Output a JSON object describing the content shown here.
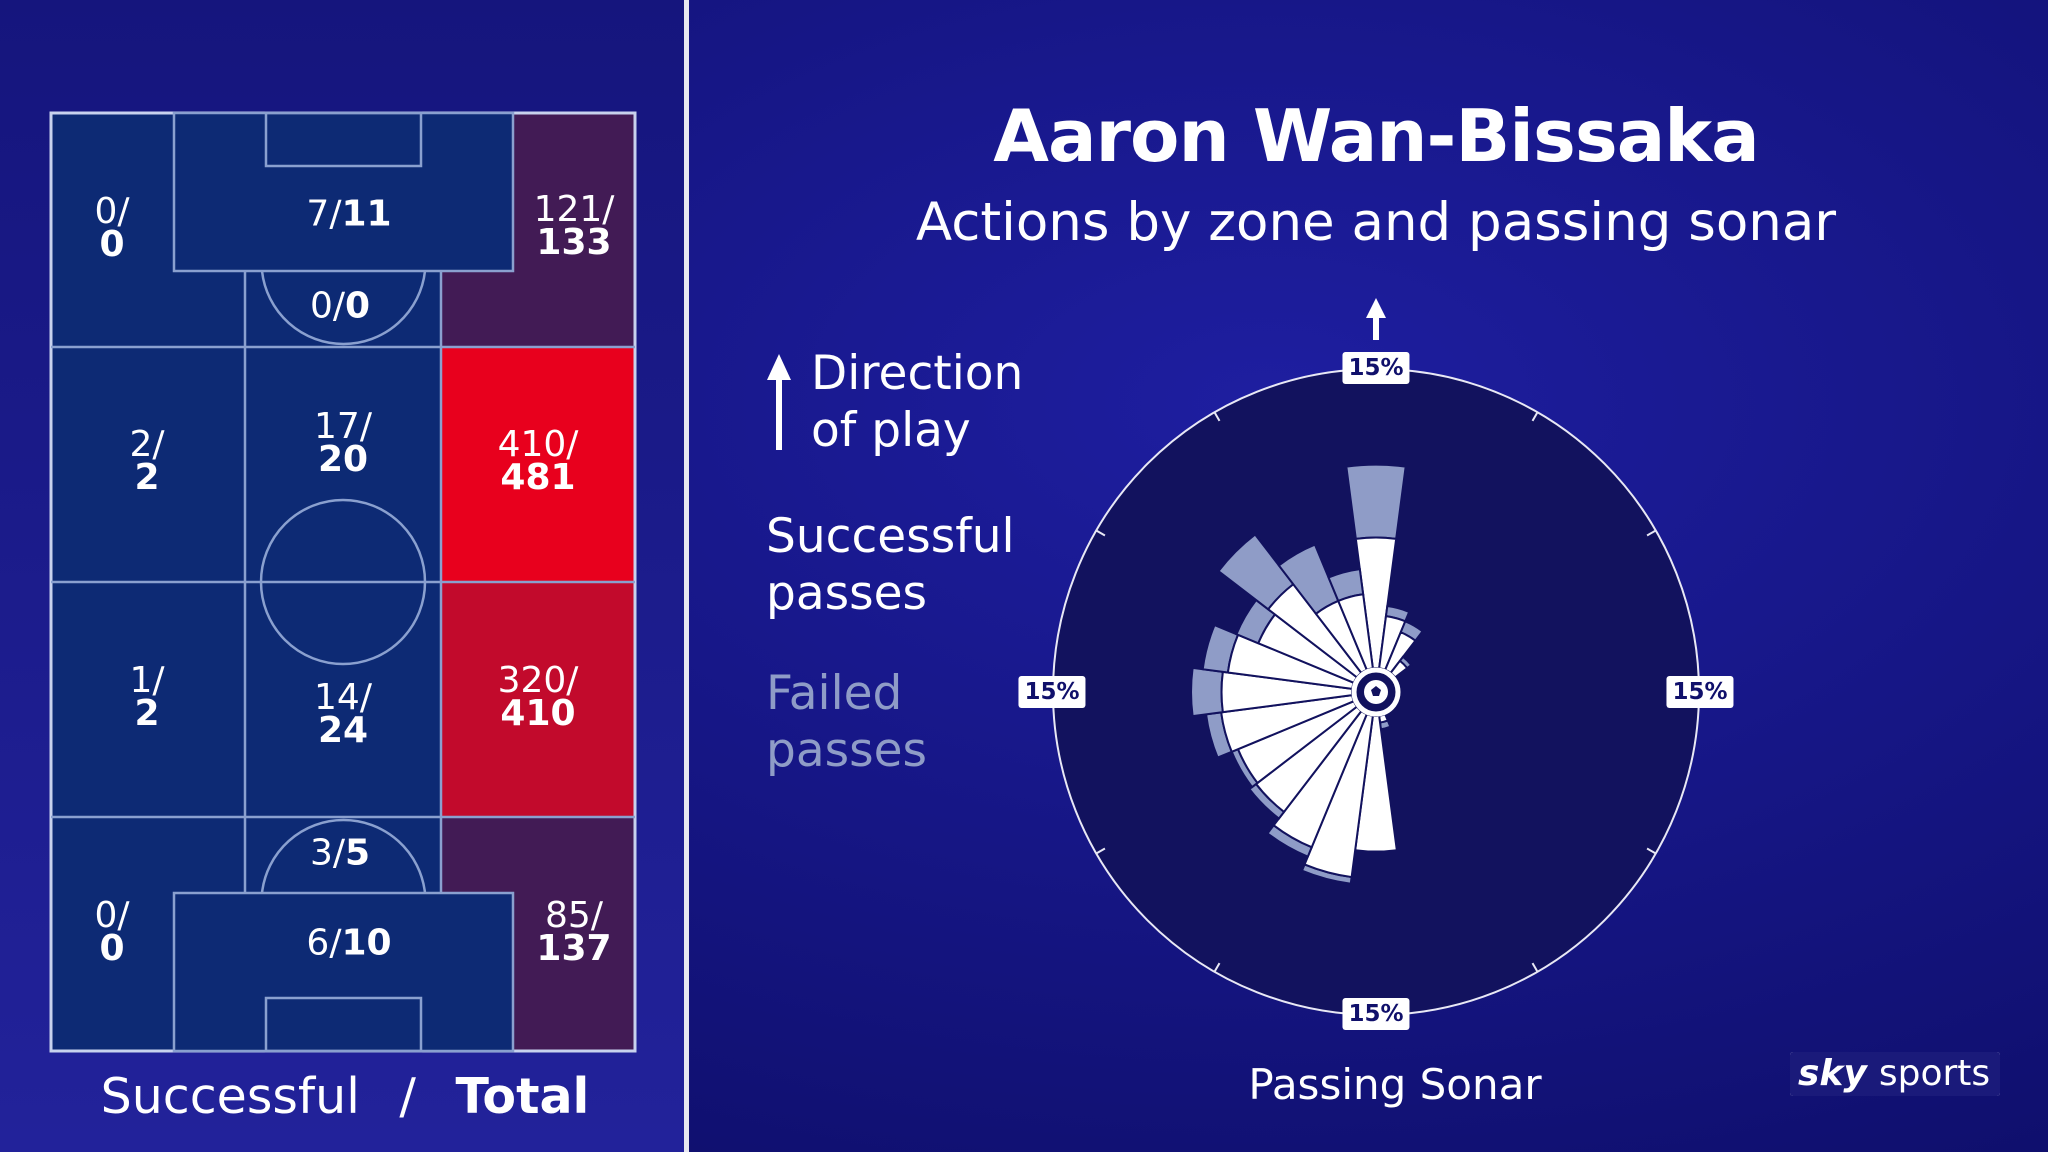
{
  "title": "Aaron Wan-Bissaka",
  "subtitle": "Actions by zone and passing sonar",
  "legend": {
    "direction": "Direction of play",
    "successful": "Successful passes",
    "failed": "Failed passes"
  },
  "pitch_caption": {
    "successful": "Successful",
    "separator": "/",
    "total": "Total"
  },
  "sonar_caption": "Passing Sonar",
  "brand": {
    "sky": "sky",
    "sports": "sports"
  },
  "colors": {
    "background": "#12127a",
    "zone_low": "#0d2a74",
    "zone_mid": "#421b55",
    "zone_high": "#c20a2c",
    "zone_max": "#e8001d",
    "successful": "#ffffff",
    "failed": "#8f9cc7"
  },
  "chart_data": [
    {
      "type": "heatmap",
      "title": "Actions by zone",
      "value_format": "successful/total",
      "zones": [
        {
          "id": "att-left",
          "successful": "0/",
          "total": "0",
          "inline": false
        },
        {
          "id": "att-box",
          "successful": "7/",
          "total": "11",
          "inline": true
        },
        {
          "id": "att-right",
          "successful": "121/",
          "total": "133",
          "inline": false
        },
        {
          "id": "att-arc",
          "successful": "0/",
          "total": "0",
          "inline": true
        },
        {
          "id": "midatt-left",
          "successful": "2/",
          "total": "2",
          "inline": false
        },
        {
          "id": "midatt-centre",
          "successful": "17/",
          "total": "20",
          "inline": false
        },
        {
          "id": "midatt-right",
          "successful": "410/",
          "total": "481",
          "inline": false
        },
        {
          "id": "middef-left",
          "successful": "1/",
          "total": "2",
          "inline": false
        },
        {
          "id": "middef-centre",
          "successful": "14/",
          "total": "24",
          "inline": false
        },
        {
          "id": "middef-right",
          "successful": "320/",
          "total": "410",
          "inline": false
        },
        {
          "id": "def-arc",
          "successful": "3/",
          "total": "5",
          "inline": true
        },
        {
          "id": "def-left",
          "successful": "0/",
          "total": "0",
          "inline": false
        },
        {
          "id": "def-box",
          "successful": "6/",
          "total": "10",
          "inline": true
        },
        {
          "id": "def-right",
          "successful": "85/",
          "total": "137",
          "inline": false
        }
      ]
    },
    {
      "type": "polar-bar",
      "title": "Passing Sonar",
      "scale_label": "15%",
      "scale_max_pct": 15,
      "sector_width_deg": 15,
      "angle_reference": "0 = direction of play (up), clockwise",
      "units": "share of passes (%)",
      "sectors": [
        {
          "angle": 0,
          "successful": 7.7,
          "failed": 4.3
        },
        {
          "angle": 15,
          "successful": 3.1,
          "failed": 0.6
        },
        {
          "angle": 30,
          "successful": 2.4,
          "failed": 0.7
        },
        {
          "angle": 45,
          "successful": 0.9,
          "failed": 0.3
        },
        {
          "angle": 165,
          "successful": 0.4,
          "failed": 0.4
        },
        {
          "angle": 180,
          "successful": 8.0,
          "failed": 0
        },
        {
          "angle": 195,
          "successful": 9.6,
          "failed": 0.4
        },
        {
          "angle": 210,
          "successful": 8.5,
          "failed": 0.6
        },
        {
          "angle": 225,
          "successful": 7.5,
          "failed": 0.5
        },
        {
          "angle": 240,
          "successful": 7.4,
          "failed": 0.4
        },
        {
          "angle": 255,
          "successful": 7.8,
          "failed": 0.9
        },
        {
          "angle": 270,
          "successful": 7.7,
          "failed": 1.8
        },
        {
          "angle": 285,
          "successful": 7.4,
          "failed": 1.5
        },
        {
          "angle": 300,
          "successful": 6.1,
          "failed": 1.4
        },
        {
          "angle": 315,
          "successful": 6.6,
          "failed": 3.7
        },
        {
          "angle": 330,
          "successful": 4.4,
          "failed": 3.6
        },
        {
          "angle": 345,
          "successful": 4.4,
          "failed": 1.5
        }
      ]
    }
  ]
}
